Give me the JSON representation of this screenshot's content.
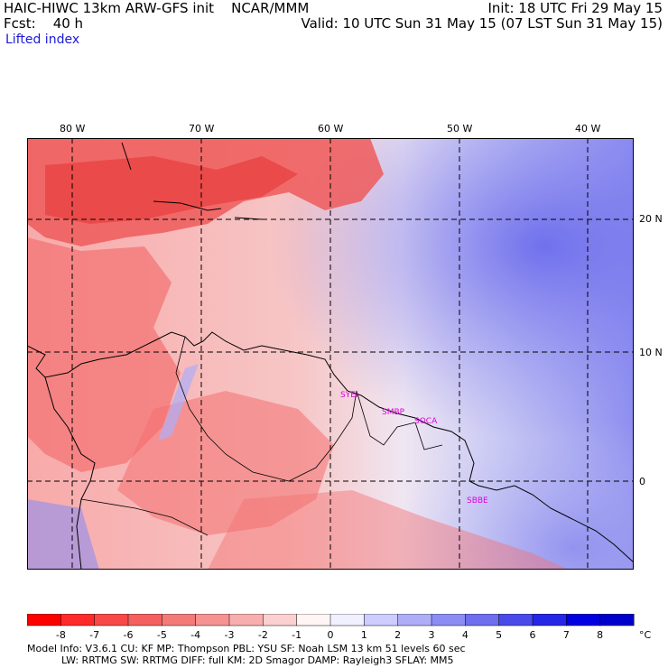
{
  "header": {
    "title": "HAIC-HIWC 13km ARW-GFS init    NCAR/MMM",
    "init": "Init: 18 UTC Fri 29 May 15",
    "fcst": "Fcst:    40 h",
    "valid": "Valid: 10 UTC Sun 31 May 15 (07 LST Sun 31 May 15)",
    "field": "Lifted index"
  },
  "map": {
    "lon_labels": [
      "80 W",
      "70 W",
      "60 W",
      "50 W",
      "40 W"
    ],
    "lat_labels": [
      "20 N",
      "10 N",
      "0"
    ],
    "stations": [
      "SYEI",
      "SMBP",
      "SOCA",
      "SBBE"
    ],
    "colors": {
      "warm_strong": "#e84040",
      "warm_mid": "#f47070",
      "warm_light": "#f8aaaa",
      "neutral": "#f3eaf0",
      "cool_light": "#c8c8f4",
      "cool_mid": "#8e8ef0",
      "cool_strong": "#6464ec"
    }
  },
  "colorbar": {
    "values": [
      "-8",
      "-7",
      "-6",
      "-5",
      "-4",
      "-3",
      "-2",
      "-1",
      "0",
      "1",
      "2",
      "3",
      "4",
      "5",
      "6",
      "7",
      "8"
    ],
    "unit": "°C",
    "colors": [
      "#ff0000",
      "#ff2a2a",
      "#f84848",
      "#f46060",
      "#f47a7a",
      "#f69292",
      "#f8aeae",
      "#fad0d0",
      "#fff5f5",
      "#f0f0ff",
      "#ccccff",
      "#aeaef8",
      "#8c8cf4",
      "#6e6eee",
      "#4a4aea",
      "#2626e6",
      "#0000e0",
      "#0000cc"
    ]
  },
  "footer": {
    "line1": "Model Info: V3.6.1    CU: KF      MP: Thompson     PBL: YSU       SF: Noah LSM      13 km     51 levels    60 sec",
    "line2": "LW: RRTMG    SW: RRTMG   DIFF: full    KM: 2D Smagor  DAMP: Rayleigh3   SFLAY: MM5"
  }
}
